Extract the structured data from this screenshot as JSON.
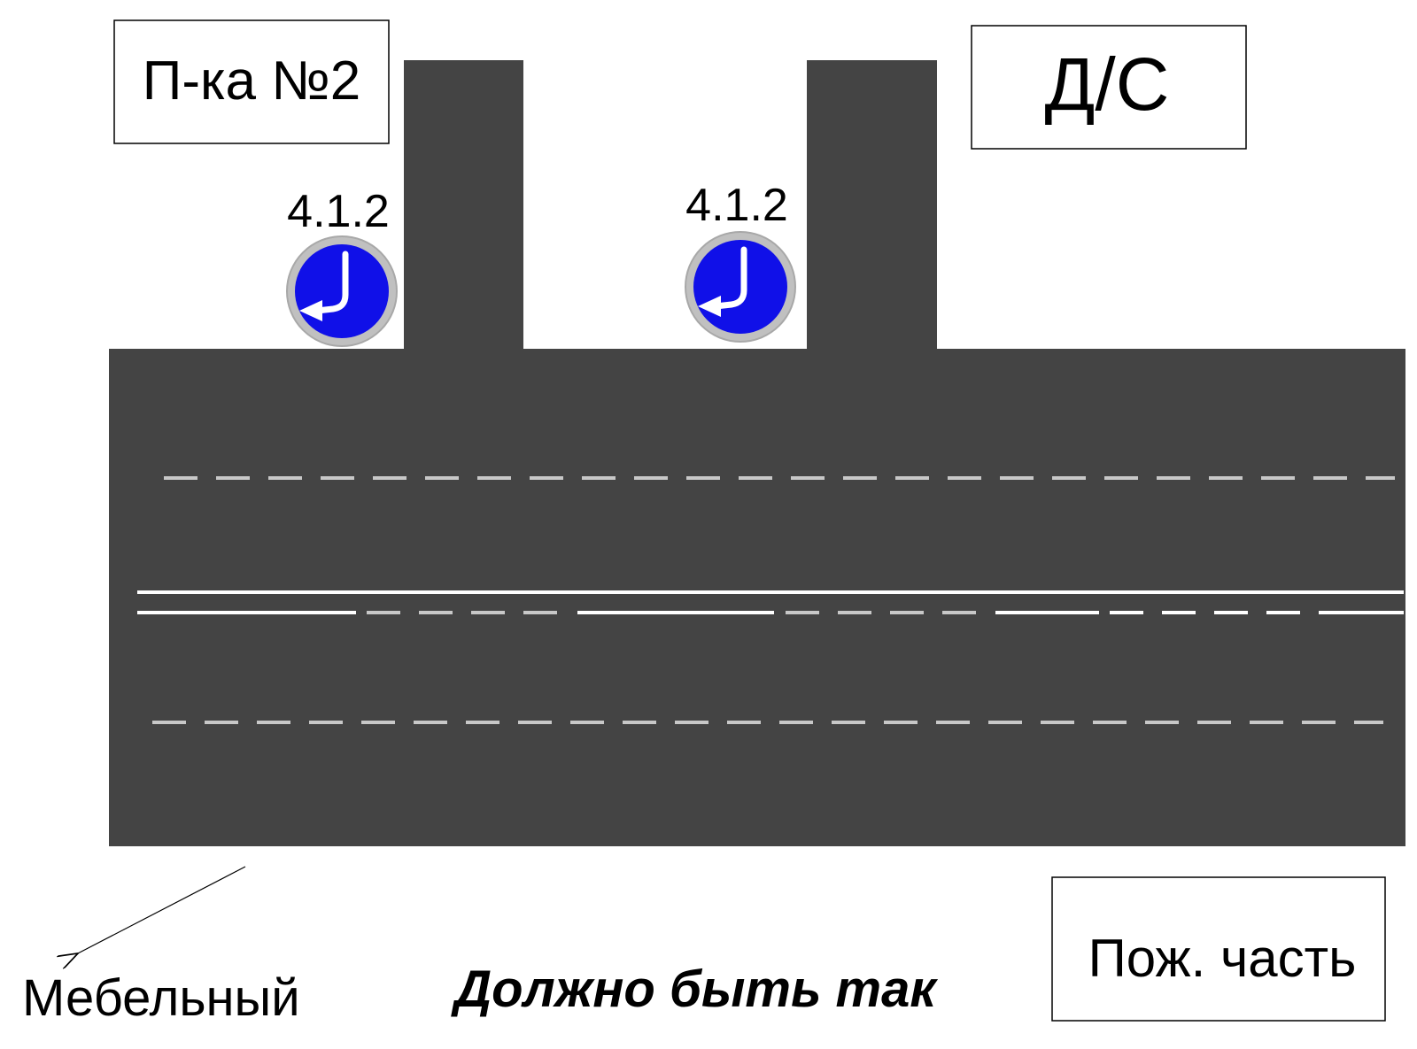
{
  "buildings": [
    {
      "label": "П-ка №2"
    },
    {
      "label": "Д/С"
    },
    {
      "label": "Пож. часть"
    }
  ],
  "signs": [
    {
      "code": "4.1.2"
    },
    {
      "code": "4.1.2"
    }
  ],
  "direction": "Мебельный",
  "caption": "Должно быть так"
}
